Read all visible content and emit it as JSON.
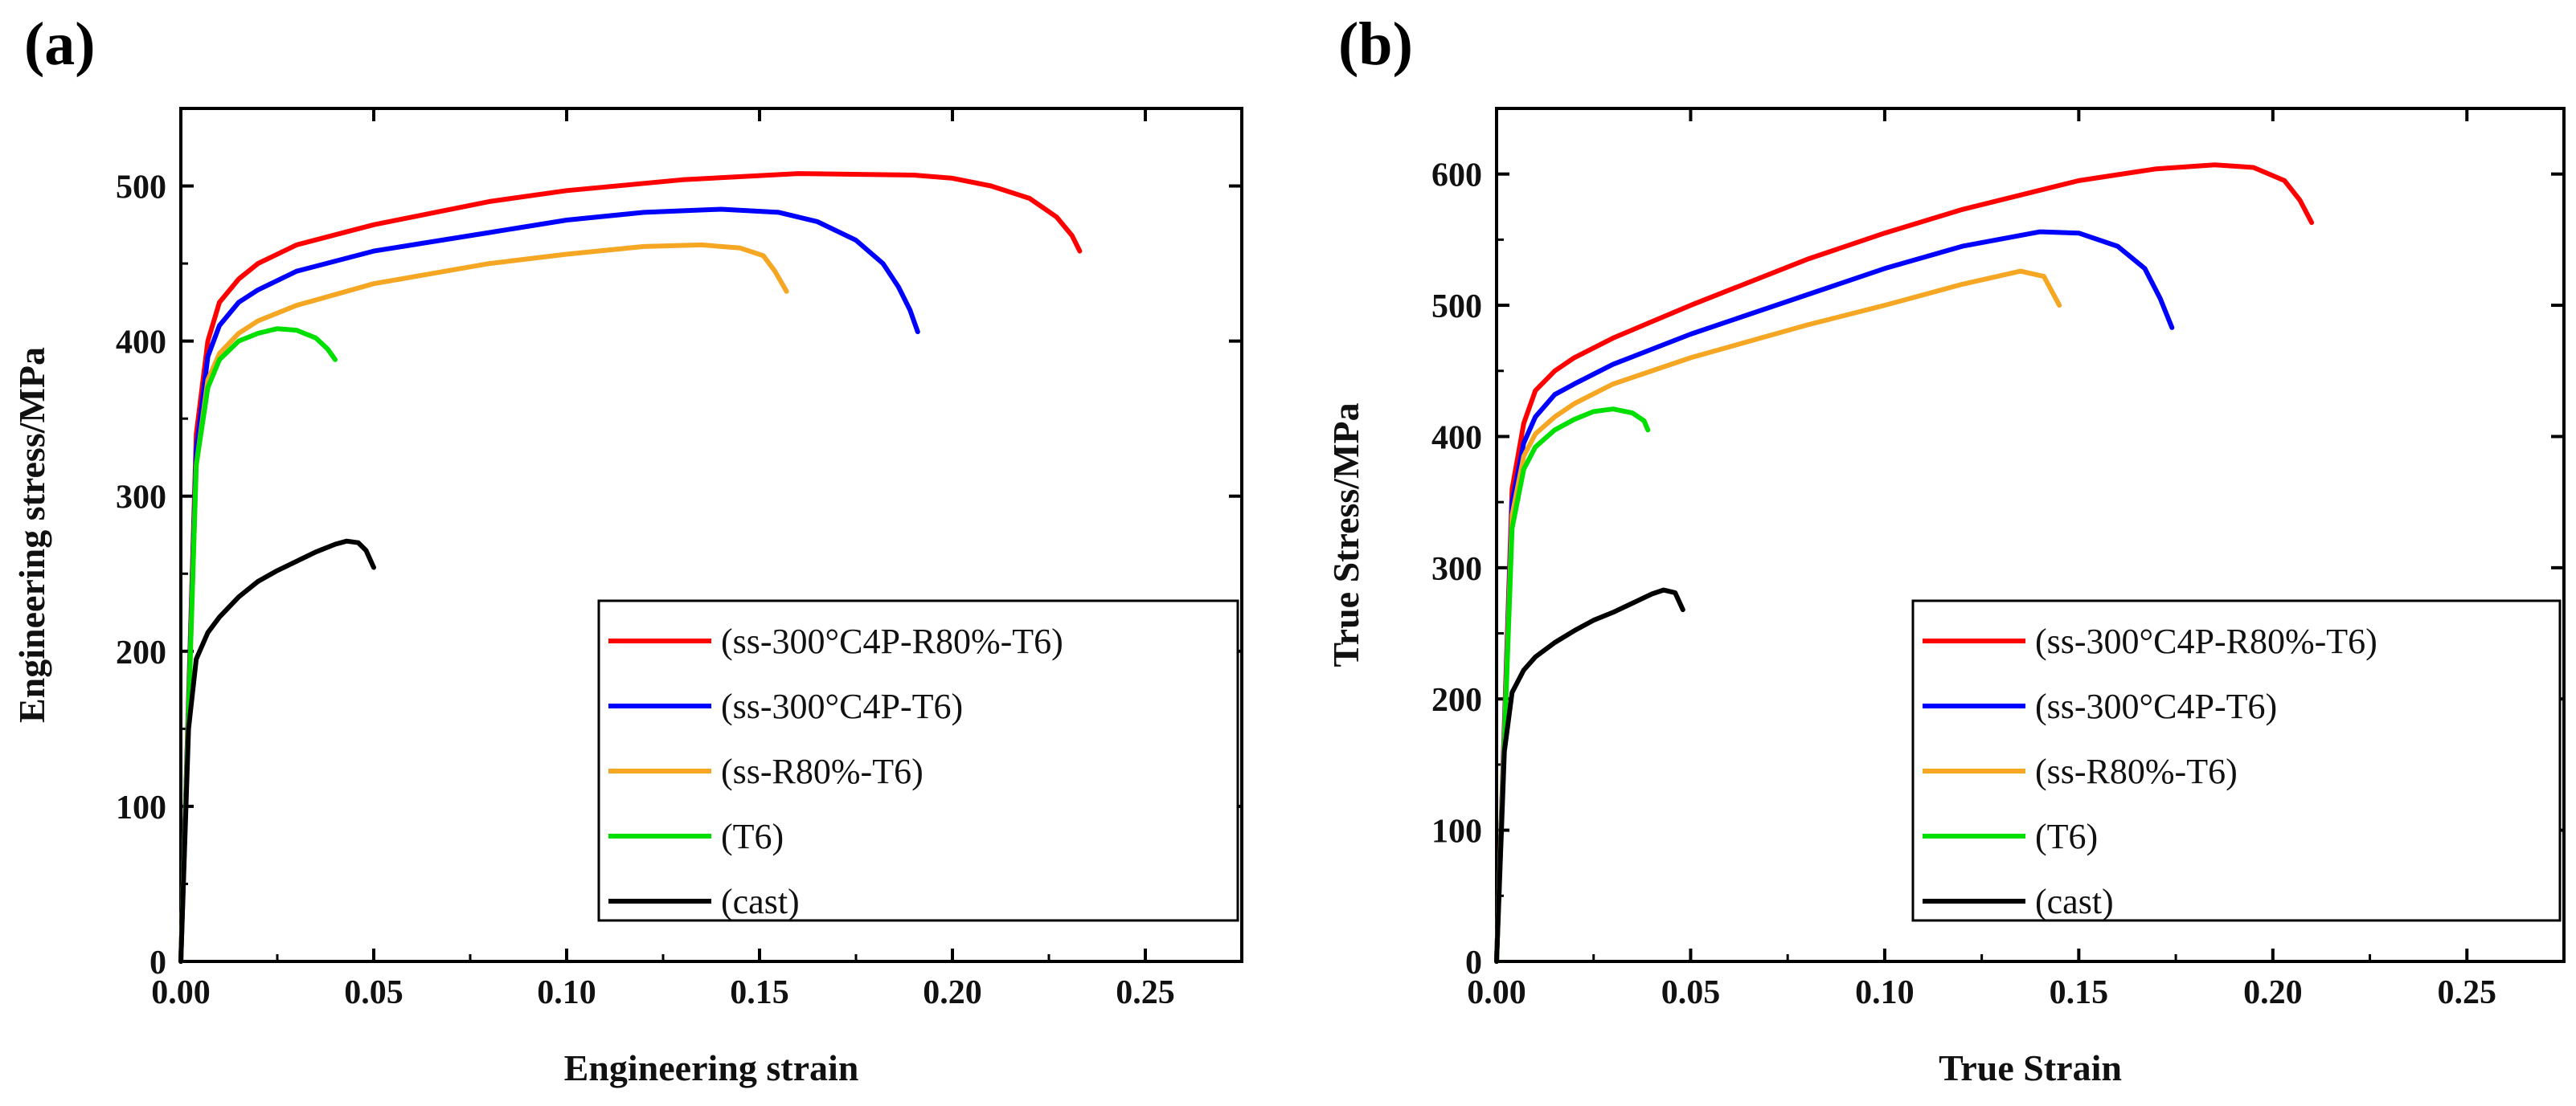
{
  "chart_data": [
    {
      "type": "line",
      "panel_label": "(a)",
      "xlabel": "Engineering strain",
      "ylabel": "Engineering stress/MPa",
      "xlim": [
        0,
        0.275
      ],
      "ylim": [
        0,
        550
      ],
      "xticks": [
        0.0,
        0.05,
        0.1,
        0.15,
        0.2,
        0.25
      ],
      "xtick_labels": [
        "0.00",
        "0.05",
        "0.10",
        "0.15",
        "0.20",
        "0.25"
      ],
      "yticks": [
        0,
        100,
        200,
        300,
        400,
        500
      ],
      "ytick_labels": [
        "0",
        "100",
        "200",
        "300",
        "400",
        "500"
      ],
      "legend_position": "bottom-right",
      "series": [
        {
          "name": "(ss-300°C4P-R80%-T6)",
          "color": "#ff0000",
          "x": [
            0,
            0.004,
            0.007,
            0.01,
            0.015,
            0.02,
            0.03,
            0.05,
            0.08,
            0.1,
            0.13,
            0.16,
            0.19,
            0.2,
            0.21,
            0.22,
            0.227,
            0.231,
            0.233
          ],
          "y": [
            0,
            340,
            400,
            425,
            440,
            450,
            462,
            475,
            490,
            497,
            504,
            508,
            507,
            505,
            500,
            492,
            480,
            468,
            458
          ]
        },
        {
          "name": "(ss-300°C4P-T6)",
          "color": "#0000ff",
          "x": [
            0,
            0.004,
            0.007,
            0.01,
            0.015,
            0.02,
            0.03,
            0.05,
            0.08,
            0.1,
            0.12,
            0.14,
            0.155,
            0.165,
            0.175,
            0.182,
            0.186,
            0.189,
            0.191
          ],
          "y": [
            0,
            330,
            390,
            410,
            425,
            433,
            445,
            458,
            470,
            478,
            483,
            485,
            483,
            477,
            465,
            450,
            435,
            420,
            406
          ]
        },
        {
          "name": "(ss-R80%-T6)",
          "color": "#f5a623",
          "x": [
            0,
            0.004,
            0.007,
            0.01,
            0.015,
            0.02,
            0.03,
            0.05,
            0.08,
            0.1,
            0.12,
            0.135,
            0.145,
            0.151,
            0.154,
            0.157
          ],
          "y": [
            0,
            320,
            375,
            392,
            405,
            413,
            423,
            437,
            450,
            456,
            461,
            462,
            460,
            455,
            445,
            432
          ]
        },
        {
          "name": "(T6)",
          "color": "#00e000",
          "x": [
            0,
            0.004,
            0.007,
            0.01,
            0.015,
            0.02,
            0.025,
            0.03,
            0.035,
            0.038,
            0.04
          ],
          "y": [
            0,
            320,
            370,
            388,
            400,
            405,
            408,
            407,
            402,
            395,
            388
          ]
        },
        {
          "name": "(cast)",
          "color": "#000000",
          "x": [
            0,
            0.002,
            0.004,
            0.007,
            0.01,
            0.015,
            0.02,
            0.025,
            0.03,
            0.035,
            0.04,
            0.043,
            0.046,
            0.048,
            0.05
          ],
          "y": [
            0,
            150,
            195,
            212,
            222,
            235,
            245,
            252,
            258,
            264,
            269,
            271,
            270,
            265,
            254
          ]
        }
      ]
    },
    {
      "type": "line",
      "panel_label": "(b)",
      "xlabel": "True Strain",
      "ylabel": "True Stress/MPa",
      "xlim": [
        0,
        0.275
      ],
      "ylim": [
        0,
        650
      ],
      "xticks": [
        0.0,
        0.05,
        0.1,
        0.15,
        0.2,
        0.25
      ],
      "xtick_labels": [
        "0.00",
        "0.05",
        "0.10",
        "0.15",
        "0.20",
        "0.25"
      ],
      "yticks": [
        0,
        100,
        200,
        300,
        400,
        500,
        600
      ],
      "ytick_labels": [
        "0",
        "100",
        "200",
        "300",
        "400",
        "500",
        "600"
      ],
      "legend_position": "bottom-right",
      "series": [
        {
          "name": "(ss-300°C4P-R80%-T6)",
          "color": "#ff0000",
          "x": [
            0,
            0.004,
            0.007,
            0.01,
            0.015,
            0.02,
            0.03,
            0.05,
            0.08,
            0.1,
            0.12,
            0.15,
            0.17,
            0.185,
            0.195,
            0.203,
            0.207,
            0.21
          ],
          "y": [
            0,
            360,
            410,
            435,
            450,
            460,
            475,
            500,
            535,
            555,
            573,
            595,
            604,
            607,
            605,
            595,
            580,
            563
          ]
        },
        {
          "name": "(ss-300°C4P-T6)",
          "color": "#0000ff",
          "x": [
            0,
            0.004,
            0.007,
            0.01,
            0.015,
            0.02,
            0.03,
            0.05,
            0.08,
            0.1,
            0.12,
            0.14,
            0.15,
            0.16,
            0.167,
            0.171,
            0.174
          ],
          "y": [
            0,
            350,
            395,
            415,
            432,
            440,
            455,
            478,
            508,
            528,
            545,
            556,
            555,
            545,
            528,
            505,
            483
          ]
        },
        {
          "name": "(ss-R80%-T6)",
          "color": "#f5a623",
          "x": [
            0,
            0.004,
            0.007,
            0.01,
            0.015,
            0.02,
            0.03,
            0.05,
            0.08,
            0.1,
            0.12,
            0.135,
            0.141,
            0.145
          ],
          "y": [
            0,
            340,
            385,
            402,
            415,
            425,
            440,
            460,
            485,
            500,
            516,
            526,
            522,
            500
          ]
        },
        {
          "name": "(T6)",
          "color": "#00e000",
          "x": [
            0,
            0.004,
            0.007,
            0.01,
            0.015,
            0.02,
            0.025,
            0.03,
            0.035,
            0.038,
            0.039
          ],
          "y": [
            0,
            330,
            375,
            392,
            405,
            413,
            419,
            421,
            418,
            412,
            405
          ]
        },
        {
          "name": "(cast)",
          "color": "#000000",
          "x": [
            0,
            0.002,
            0.004,
            0.007,
            0.01,
            0.015,
            0.02,
            0.025,
            0.03,
            0.035,
            0.04,
            0.043,
            0.046,
            0.048
          ],
          "y": [
            0,
            160,
            205,
            222,
            232,
            243,
            252,
            260,
            266,
            273,
            280,
            283,
            281,
            268
          ]
        }
      ]
    }
  ]
}
